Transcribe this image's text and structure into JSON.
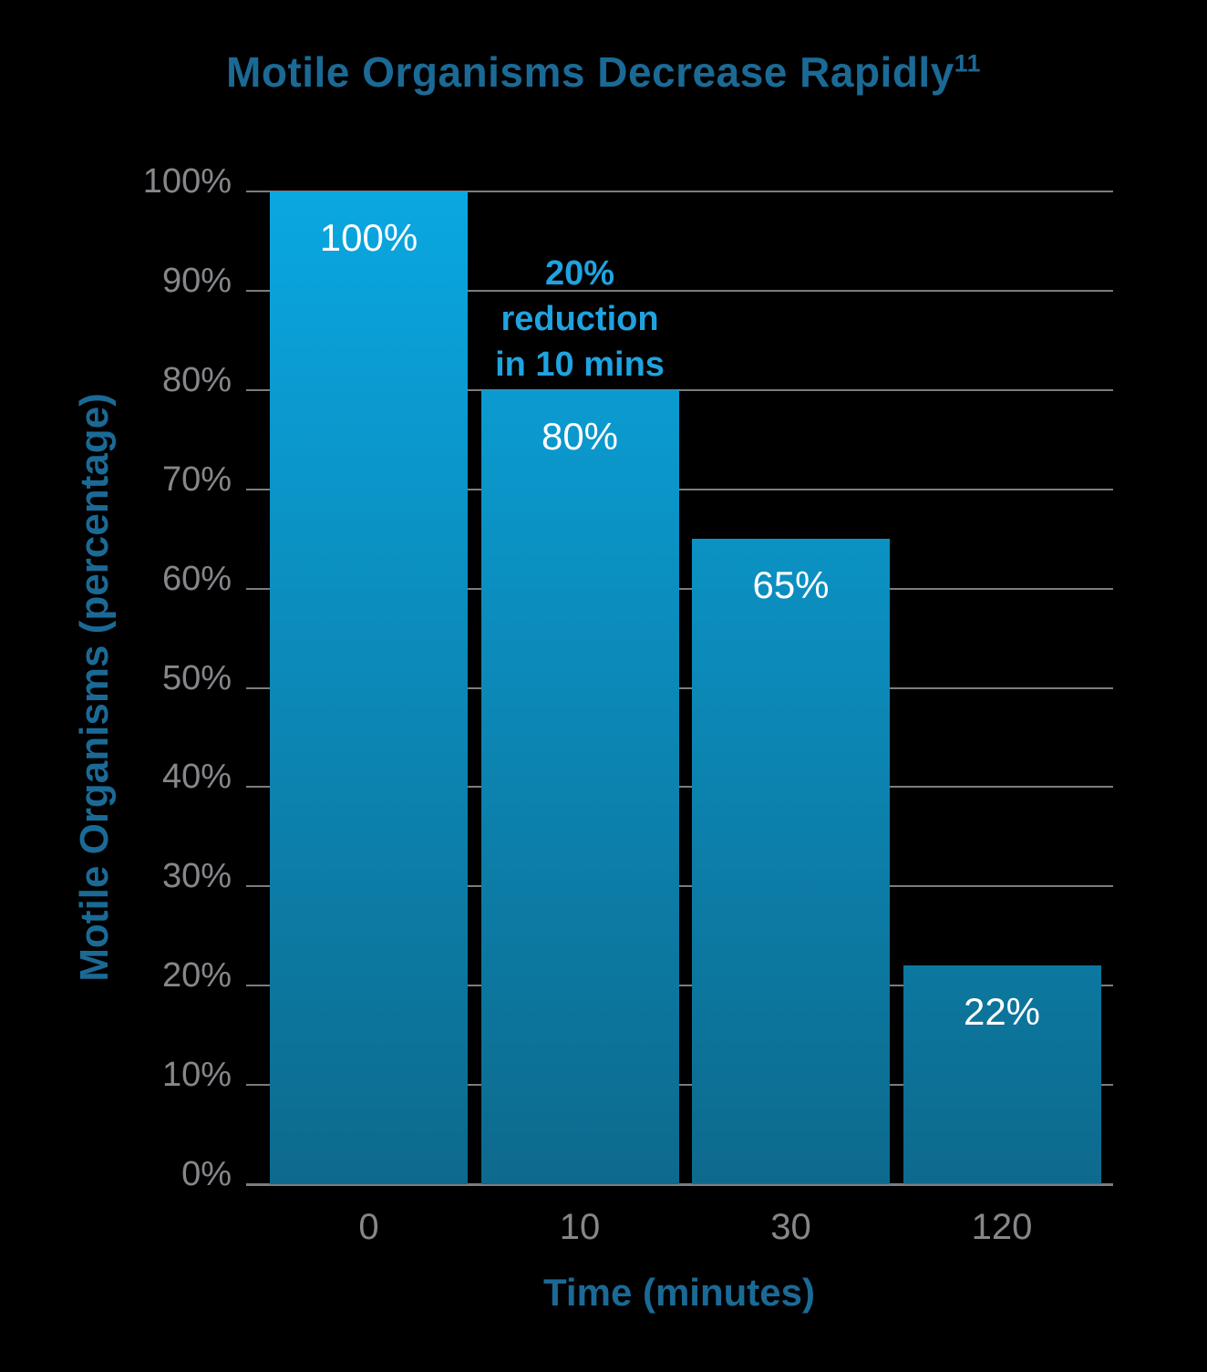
{
  "chart_data": {
    "type": "bar",
    "title": "Motile Organisms Decrease Rapidly",
    "title_superscript": "11",
    "xlabel": "Time (minutes)",
    "ylabel": "Motile Organisms (percentage)",
    "categories": [
      "0",
      "10",
      "30",
      "120"
    ],
    "values": [
      100,
      80,
      65,
      22
    ],
    "bar_labels": [
      "100%",
      "80%",
      "65%",
      "22%"
    ],
    "ylim": [
      0,
      100
    ],
    "ytick_step": 10,
    "ytick_labels": [
      "0%",
      "10%",
      "20%",
      "30%",
      "40%",
      "50%",
      "60%",
      "70%",
      "80%",
      "90%",
      "100%"
    ],
    "grid": true,
    "legend": "none",
    "annotation": {
      "lines": [
        "20%",
        "reduction",
        "in 10 mins"
      ],
      "anchor_category": "10"
    }
  },
  "colors": {
    "background": "#000000",
    "title": "#1b6a96",
    "tick_label": "#85878a",
    "gridline": "#7b7d80",
    "bar_gradient_top": "#0aa7e1",
    "bar_gradient_bottom": "#0d6a8d",
    "bar_label": "#ffffff",
    "annotation_text": "#1fa3e0"
  }
}
